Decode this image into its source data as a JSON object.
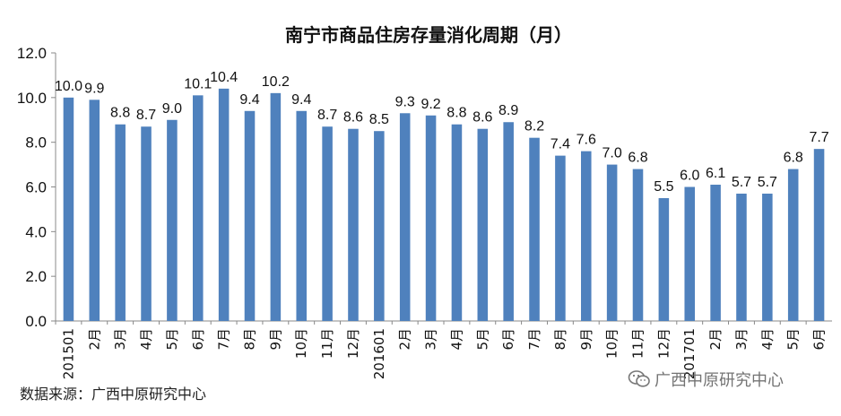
{
  "chart_data": {
    "type": "bar",
    "title": "南宁市商品住房存量消化周期（月）",
    "categories": [
      "201501",
      "2月",
      "3月",
      "4月",
      "5月",
      "6月",
      "7月",
      "8月",
      "9月",
      "10月",
      "11月",
      "12月",
      "201601",
      "2月",
      "3月",
      "4月",
      "5月",
      "6月",
      "7月",
      "8月",
      "9月",
      "10月",
      "11月",
      "12月",
      "201701",
      "2月",
      "3月",
      "4月",
      "5月",
      "6月"
    ],
    "values": [
      10.0,
      9.9,
      8.8,
      8.7,
      9.0,
      10.1,
      10.4,
      9.4,
      10.2,
      9.4,
      8.7,
      8.6,
      8.5,
      9.3,
      9.2,
      8.8,
      8.6,
      8.9,
      8.2,
      7.4,
      7.6,
      7.0,
      6.8,
      5.5,
      6.0,
      6.1,
      5.7,
      5.7,
      6.8,
      7.7
    ],
    "value_labels": [
      "10.0",
      "9.9",
      "8.8",
      "8.7",
      "9.0",
      "10.1",
      "10.4",
      "9.4",
      "10.2",
      "9.4",
      "8.7",
      "8.6",
      "8.5",
      "9.3",
      "9.2",
      "8.8",
      "8.6",
      "8.9",
      "8.2",
      "7.4",
      "7.6",
      "7.0",
      "6.8",
      "5.5",
      "6.0",
      "6.1",
      "5.7",
      "5.7",
      "6.8",
      "7.7"
    ],
    "ylim": [
      0,
      12
    ],
    "yticks": [
      "0.0",
      "2.0",
      "4.0",
      "6.0",
      "8.0",
      "10.0",
      "12.0"
    ],
    "grid": false,
    "bar_color": "#4f81bd"
  },
  "source_text": "数据来源：广西中原研究中心",
  "watermark": {
    "text": "广西中原研究中心",
    "icon": "wechat-icon"
  }
}
